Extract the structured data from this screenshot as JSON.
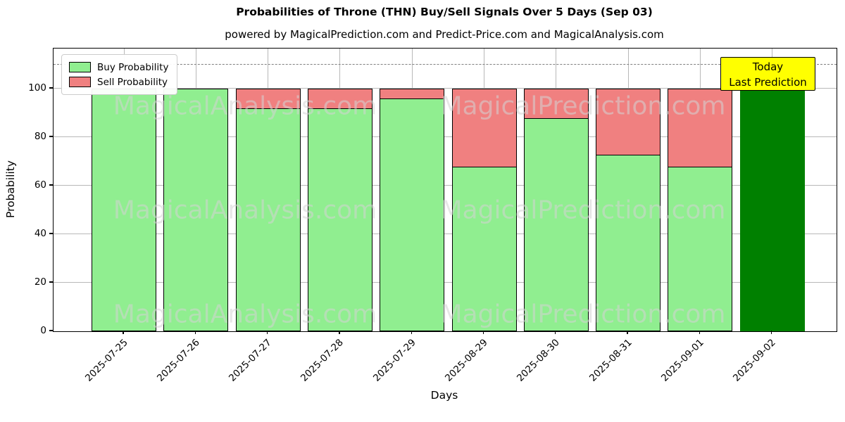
{
  "title": "Probabilities of Throne (THN) Buy/Sell Signals Over 5 Days (Sep 03)",
  "subtitle": "powered by MagicalPrediction.com and Predict-Price.com and MagicalAnalysis.com",
  "legend": {
    "buy_label": "Buy Probability",
    "sell_label": "Sell Probability"
  },
  "annotation": {
    "line1": "Today",
    "line2": "Last Prediction"
  },
  "watermarks": [
    "MagicalAnalysis.com",
    "MagicalPrediction.com"
  ],
  "colors": {
    "buy": "#90EE90",
    "sell": "#F08080",
    "today_bar": "#008000",
    "annotation_bg": "#FFFF00",
    "grid": "#b8b8b8",
    "dashed_line": "#7f7f7f"
  },
  "chart_data": {
    "type": "bar",
    "stacked": true,
    "title": "Probabilities of Throne (THN) Buy/Sell Signals Over 5 Days (Sep 03)",
    "xlabel": "Days",
    "ylabel": "Probability",
    "categories": [
      "2025-07-25",
      "2025-07-26",
      "2025-07-27",
      "2025-07-28",
      "2025-07-29",
      "2025-08-29",
      "2025-08-30",
      "2025-08-31",
      "2025-09-01",
      "2025-09-02"
    ],
    "series": [
      {
        "name": "Buy Probability",
        "color": "#90EE90",
        "values": [
          100,
          100,
          92,
          92,
          96,
          68,
          88,
          73,
          68,
          100
        ]
      },
      {
        "name": "Sell Probability",
        "color": "#F08080",
        "values": [
          0,
          0,
          8,
          8,
          4,
          32,
          12,
          27,
          32,
          0
        ]
      }
    ],
    "today_bar": {
      "category": "2025-09-02",
      "color": "#008000",
      "value": 100
    },
    "yticks": [
      0,
      20,
      40,
      60,
      80,
      100
    ],
    "ylim": [
      0,
      116.5
    ],
    "dashed_line_y": 110,
    "grid": true,
    "legend_position": "upper left"
  }
}
